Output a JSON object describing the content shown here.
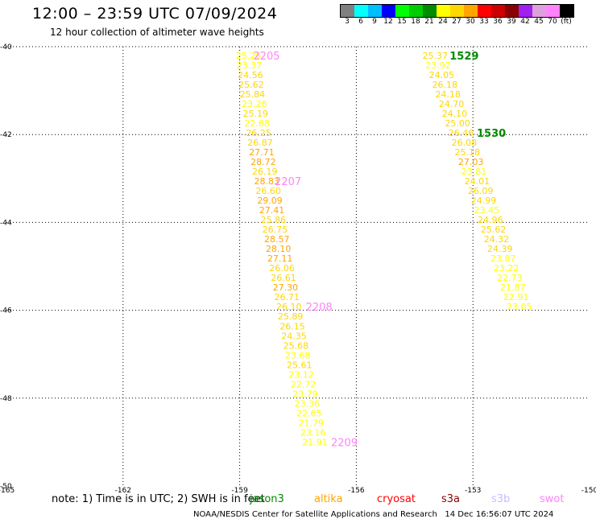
{
  "header": {
    "title": "12:00 – 23:59 UTC 07/09/2024",
    "subtitle": "12 hour collection of altimeter wave heights"
  },
  "legend": {
    "colors": [
      "#808080",
      "#00ffff",
      "#00bfff",
      "#0000ff",
      "#00ff00",
      "#00cd00",
      "#008b00",
      "#ffff00",
      "#ffd700",
      "#ffa500",
      "#ff0000",
      "#cd0000",
      "#8b0000",
      "#a020f0",
      "#dda0dd",
      "#ff83fa",
      "#000000"
    ],
    "labels": [
      "3",
      "6",
      "9",
      "12",
      "15",
      "18",
      "21",
      "24",
      "27",
      "30",
      "33",
      "36",
      "39",
      "42",
      "45",
      "70",
      "(ft)"
    ]
  },
  "footer": {
    "note": "note: 1) Time is in UTC; 2) SWH is in feet",
    "satellites": [
      {
        "name": "jason3",
        "color": "#008b00"
      },
      {
        "name": "altika",
        "color": "#ffa500"
      },
      {
        "name": "cryosat",
        "color": "#ff0000"
      },
      {
        "name": "s3a",
        "color": "#8b0000"
      },
      {
        "name": "s3b",
        "color": "#ccbbff"
      },
      {
        "name": "swot",
        "color": "#ff83fa"
      }
    ],
    "credit": "NOAA/NESDIS Center for Satellite Applications and Research   14 Dec 16:56:07 UTC 2024"
  },
  "chart_data": {
    "type": "scatter",
    "xlim": [
      -165,
      -150
    ],
    "ylim": [
      -50,
      -40
    ],
    "x_ticks": [
      -165,
      -162,
      -159,
      -156,
      -153,
      -150
    ],
    "y_ticks": [
      -40,
      -42,
      -44,
      -46,
      -48,
      -50
    ],
    "grid": true,
    "series": [
      {
        "name": "swot",
        "color_key": "swot",
        "points": [
          {
            "x": -159.1,
            "y": -40.2,
            "v": "25.26",
            "c": "#ffff00"
          },
          {
            "x": -159.08,
            "y": -40.42,
            "v": "23.37",
            "c": "#ffff00"
          },
          {
            "x": -159.05,
            "y": -40.64,
            "v": "24.56",
            "c": "#ffd700"
          },
          {
            "x": -159.03,
            "y": -40.86,
            "v": "25.62",
            "c": "#ffd700"
          },
          {
            "x": -159.0,
            "y": -41.08,
            "v": "25.84",
            "c": "#ffd700"
          },
          {
            "x": -158.95,
            "y": -41.3,
            "v": "23.28",
            "c": "#ffff00"
          },
          {
            "x": -158.92,
            "y": -41.52,
            "v": "25.19",
            "c": "#ffd700"
          },
          {
            "x": -158.88,
            "y": -41.74,
            "v": "22.68",
            "c": "#ffff00"
          },
          {
            "x": -158.84,
            "y": -41.96,
            "v": "26.25",
            "c": "#ffd700"
          },
          {
            "x": -158.8,
            "y": -42.18,
            "v": "26.87",
            "c": "#ffd700"
          },
          {
            "x": -158.76,
            "y": -42.4,
            "v": "27.71",
            "c": "#ffa500"
          },
          {
            "x": -158.72,
            "y": -42.62,
            "v": "28.72",
            "c": "#ffa500"
          },
          {
            "x": -158.68,
            "y": -42.84,
            "v": "26.19",
            "c": "#ffd700"
          },
          {
            "x": -158.63,
            "y": -43.06,
            "v": "28.83",
            "c": "#ffa500"
          },
          {
            "x": -158.59,
            "y": -43.28,
            "v": "26.60",
            "c": "#ffd700"
          },
          {
            "x": -158.55,
            "y": -43.5,
            "v": "29.09",
            "c": "#ffa500"
          },
          {
            "x": -158.5,
            "y": -43.72,
            "v": "27.41",
            "c": "#ffa500"
          },
          {
            "x": -158.46,
            "y": -43.94,
            "v": "25.86",
            "c": "#ffd700"
          },
          {
            "x": -158.42,
            "y": -44.16,
            "v": "26.75",
            "c": "#ffd700"
          },
          {
            "x": -158.37,
            "y": -44.38,
            "v": "28.57",
            "c": "#ffa500"
          },
          {
            "x": -158.33,
            "y": -44.6,
            "v": "28.10",
            "c": "#ffa500"
          },
          {
            "x": -158.29,
            "y": -44.82,
            "v": "27.11",
            "c": "#ffa500"
          },
          {
            "x": -158.24,
            "y": -45.04,
            "v": "26.06",
            "c": "#ffd700"
          },
          {
            "x": -158.2,
            "y": -45.26,
            "v": "26.61",
            "c": "#ffd700"
          },
          {
            "x": -158.15,
            "y": -45.48,
            "v": "27.30",
            "c": "#ffa500"
          },
          {
            "x": -158.11,
            "y": -45.7,
            "v": "26.71",
            "c": "#ffd700"
          },
          {
            "x": -158.06,
            "y": -45.92,
            "v": "26.10",
            "c": "#ffd700"
          },
          {
            "x": -158.02,
            "y": -46.14,
            "v": "25.89",
            "c": "#ffd700"
          },
          {
            "x": -157.97,
            "y": -46.36,
            "v": "26.15",
            "c": "#ffd700"
          },
          {
            "x": -157.93,
            "y": -46.58,
            "v": "24.35",
            "c": "#ffd700"
          },
          {
            "x": -157.88,
            "y": -46.8,
            "v": "25.68",
            "c": "#ffd700"
          },
          {
            "x": -157.83,
            "y": -47.02,
            "v": "23.68",
            "c": "#ffff00"
          },
          {
            "x": -157.79,
            "y": -47.24,
            "v": "25.61",
            "c": "#ffd700"
          },
          {
            "x": -157.74,
            "y": -47.46,
            "v": "23.12",
            "c": "#ffff00"
          },
          {
            "x": -157.69,
            "y": -47.68,
            "v": "22.72",
            "c": "#ffff00"
          },
          {
            "x": -157.64,
            "y": -47.9,
            "v": "23.79",
            "c": "#ffff00"
          },
          {
            "x": -157.59,
            "y": -48.12,
            "v": "23.36",
            "c": "#ffff00"
          },
          {
            "x": -157.54,
            "y": -48.34,
            "v": "22.65",
            "c": "#ffff00"
          },
          {
            "x": -157.49,
            "y": -48.56,
            "v": "21.79",
            "c": "#ffff00"
          },
          {
            "x": -157.44,
            "y": -48.78,
            "v": "23.16",
            "c": "#ffff00"
          },
          {
            "x": -157.39,
            "y": -49.0,
            "v": "21.91",
            "c": "#ffff00"
          }
        ],
        "time_labels": [
          {
            "x": -158.65,
            "y": -40.2,
            "t": "2205"
          },
          {
            "x": -158.1,
            "y": -43.06,
            "t": "2207"
          },
          {
            "x": -157.3,
            "y": -45.92,
            "t": "2208"
          },
          {
            "x": -156.65,
            "y": -49.0,
            "t": "2209"
          }
        ]
      },
      {
        "name": "jason3",
        "color_key": "jason3",
        "points": [
          {
            "x": -154.3,
            "y": -40.2,
            "v": "25.37",
            "c": "#ffd700"
          },
          {
            "x": -154.22,
            "y": -40.42,
            "v": "23.92",
            "c": "#ffff00"
          },
          {
            "x": -154.13,
            "y": -40.64,
            "v": "24.05",
            "c": "#ffd700"
          },
          {
            "x": -154.05,
            "y": -40.86,
            "v": "26.18",
            "c": "#ffd700"
          },
          {
            "x": -153.97,
            "y": -41.08,
            "v": "24.18",
            "c": "#ffd700"
          },
          {
            "x": -153.88,
            "y": -41.3,
            "v": "24.70",
            "c": "#ffd700"
          },
          {
            "x": -153.8,
            "y": -41.52,
            "v": "24.10",
            "c": "#ffd700"
          },
          {
            "x": -153.72,
            "y": -41.74,
            "v": "25.00",
            "c": "#ffd700"
          },
          {
            "x": -153.63,
            "y": -41.96,
            "v": "26.46",
            "c": "#ffd700"
          },
          {
            "x": -153.55,
            "y": -42.18,
            "v": "26.08",
            "c": "#ffd700"
          },
          {
            "x": -153.47,
            "y": -42.4,
            "v": "25.18",
            "c": "#ffd700"
          },
          {
            "x": -153.38,
            "y": -42.62,
            "v": "27.03",
            "c": "#ffa500"
          },
          {
            "x": -153.3,
            "y": -42.84,
            "v": "23.81",
            "c": "#ffff00"
          },
          {
            "x": -153.22,
            "y": -43.06,
            "v": "24.01",
            "c": "#ffd700"
          },
          {
            "x": -153.13,
            "y": -43.28,
            "v": "26.09",
            "c": "#ffd700"
          },
          {
            "x": -153.05,
            "y": -43.5,
            "v": "24.99",
            "c": "#ffd700"
          },
          {
            "x": -152.97,
            "y": -43.72,
            "v": "23.45",
            "c": "#ffff00"
          },
          {
            "x": -152.88,
            "y": -43.94,
            "v": "24.96",
            "c": "#ffd700"
          },
          {
            "x": -152.8,
            "y": -44.16,
            "v": "25.62",
            "c": "#ffd700"
          },
          {
            "x": -152.72,
            "y": -44.38,
            "v": "24.32",
            "c": "#ffd700"
          },
          {
            "x": -152.63,
            "y": -44.6,
            "v": "24.39",
            "c": "#ffd700"
          },
          {
            "x": -152.55,
            "y": -44.82,
            "v": "23.87",
            "c": "#ffff00"
          },
          {
            "x": -152.47,
            "y": -45.04,
            "v": "23.22",
            "c": "#ffff00"
          },
          {
            "x": -152.38,
            "y": -45.26,
            "v": "22.73",
            "c": "#ffff00"
          },
          {
            "x": -152.3,
            "y": -45.48,
            "v": "21.87",
            "c": "#ffff00"
          },
          {
            "x": -152.22,
            "y": -45.7,
            "v": "22.91",
            "c": "#ffff00"
          },
          {
            "x": -152.13,
            "y": -45.92,
            "v": "23.05",
            "c": "#ffff00"
          }
        ],
        "time_labels": [
          {
            "x": -153.6,
            "y": -40.2,
            "t": "1529"
          },
          {
            "x": -152.9,
            "y": -41.96,
            "t": "1530"
          }
        ]
      }
    ]
  }
}
